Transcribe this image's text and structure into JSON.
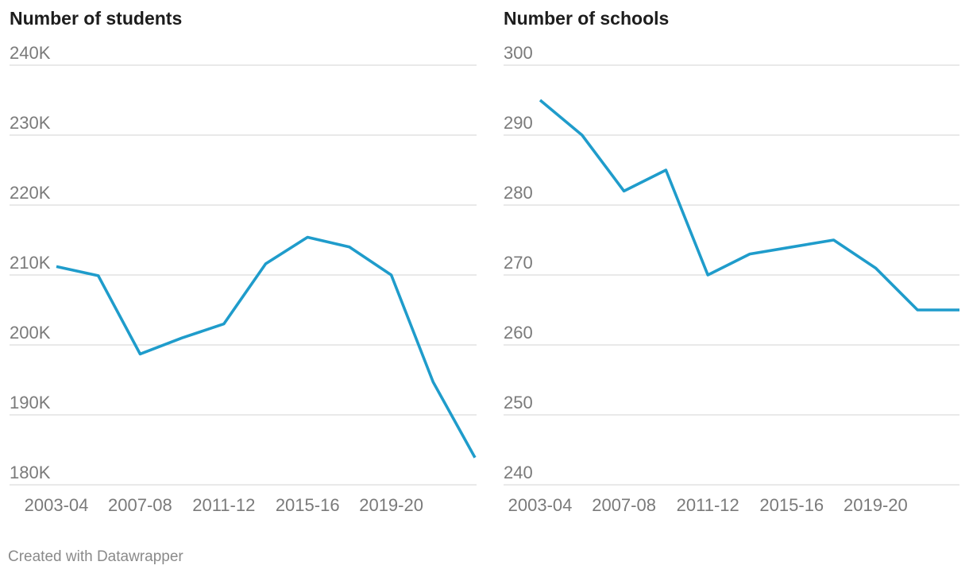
{
  "colors": {
    "line": "#1f9ccb"
  },
  "footer": {
    "credit": "Created with Datawrapper"
  },
  "chart_data": [
    {
      "type": "line",
      "title": "Number of students",
      "x": [
        "2003-04",
        "2005-06",
        "2007-08",
        "2009-10",
        "2011-12",
        "2013-14",
        "2015-16",
        "2017-18",
        "2019-20",
        "2021-22",
        "2023-24"
      ],
      "x_tick_labels": [
        "2003-04",
        "2007-08",
        "2011-12",
        "2015-16",
        "2019-20"
      ],
      "y_ticks": [
        180000,
        190000,
        200000,
        210000,
        220000,
        230000,
        240000
      ],
      "y_tick_labels": [
        "180K",
        "190K",
        "200K",
        "210K",
        "220K",
        "230K",
        "240K"
      ],
      "ylim": [
        180000,
        240000
      ],
      "grid": true,
      "series": [
        {
          "values": [
            211200,
            209900,
            198700,
            201000,
            203000,
            211600,
            215400,
            214000,
            210000,
            194700,
            183900
          ]
        }
      ]
    },
    {
      "type": "line",
      "title": "Number of schools",
      "x": [
        "2003-04",
        "2005-06",
        "2007-08",
        "2009-10",
        "2011-12",
        "2013-14",
        "2015-16",
        "2017-18",
        "2019-20",
        "2021-22",
        "2023-24"
      ],
      "x_tick_labels": [
        "2003-04",
        "2007-08",
        "2011-12",
        "2015-16",
        "2019-20"
      ],
      "y_ticks": [
        240,
        250,
        260,
        270,
        280,
        290,
        300
      ],
      "y_tick_labels": [
        "240",
        "250",
        "260",
        "270",
        "280",
        "290",
        "300"
      ],
      "ylim": [
        240,
        300
      ],
      "grid": true,
      "series": [
        {
          "values": [
            295,
            290,
            282,
            285,
            270,
            273,
            274,
            275,
            271,
            265,
            265
          ]
        }
      ]
    }
  ]
}
